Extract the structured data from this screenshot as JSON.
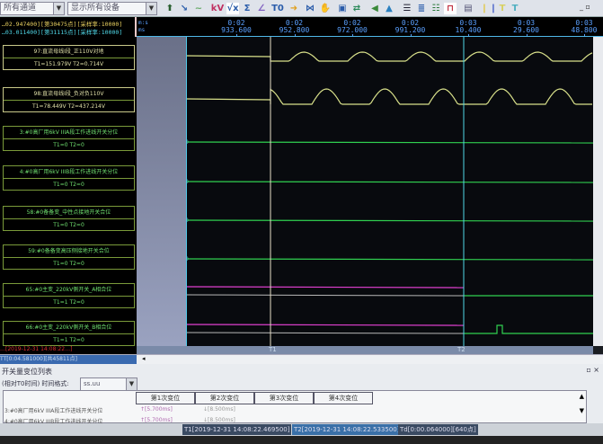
{
  "toolbar": {
    "channel_filter": "所有通道",
    "device_filter": "显示所有设备",
    "icons": [
      "arrow-tool-icon",
      "ruler-icon",
      "wave-icon",
      "kv-icon",
      "sqrt-icon",
      "sigma-icon",
      "angle-icon",
      "t0-icon",
      "forward-icon",
      "fit-icon",
      "hand-icon",
      "image-icon",
      "swap-icon",
      "back-icon",
      "up-icon",
      "list-icon",
      "align-icon",
      "tree-icon",
      "switch-icon",
      "window-icon",
      "marker-yellow-icon",
      "marker-blue-icon",
      "t1-icon",
      "t2-icon"
    ],
    "kv": "kV",
    "sqrt": "√x",
    "sigma": "Σ",
    "t0": "T0"
  },
  "header": {
    "t1_info": "…02.947400][第30475点][采样率:10000]",
    "t2_info": "…03.011400][第31115点][采样率:10000]",
    "unit1": "m:s",
    "unit2": "ms",
    "ticks": [
      {
        "m": "0:02",
        "s": "933.600"
      },
      {
        "m": "0:02",
        "s": "952.800"
      },
      {
        "m": "0:02",
        "s": "972.000"
      },
      {
        "m": "0:02",
        "s": "991.200"
      },
      {
        "m": "0:03",
        "s": "10.400"
      },
      {
        "m": "0:03",
        "s": "29.600"
      },
      {
        "m": "0:03",
        "s": "48.800"
      }
    ]
  },
  "channels": [
    {
      "name": "97:直流母线I段_正110V对地",
      "values": "T1=151.979V T2=0.714V",
      "type": "analog"
    },
    {
      "name": "98:直流母线I段_负对负110V",
      "values": "T1=78.449V T2=437.214V",
      "type": "analog"
    },
    {
      "name": "3:#0高厂用6kV IIIA段工作进线开关分位",
      "values": "T1=0 T2=0",
      "type": "digital"
    },
    {
      "name": "4:#0高厂用6kV IIIB段工作进线开关分位",
      "values": "T1=0 T2=0",
      "type": "digital"
    },
    {
      "name": "58:#0备备变_中性点接地开关合位",
      "values": "T1=0 T2=0",
      "type": "digital"
    },
    {
      "name": "59:#0备备变高压侧接地开关合位",
      "values": "T1=0 T2=0",
      "type": "digital"
    },
    {
      "name": "65:#0主变_220kV侧开关_A相合位",
      "values": "T1=1 T2=0",
      "type": "digital"
    },
    {
      "name": "66:#0主变_220kV侧开关_B相合位",
      "values": "T1=1 T2=0",
      "type": "digital"
    }
  ],
  "cursors": {
    "t1": "T1",
    "t2": "T2"
  },
  "left_status": {
    "line1": "…[2019-12-31 14:08:22…]",
    "line2": "TT[0:04.581000][共45811点]"
  },
  "panel": {
    "title": "开关量变位列表",
    "relative_label": "(相对T0时间) 时间格式:",
    "time_format": "ss.uu",
    "columns": [
      "第1次变位",
      "第2次变位",
      "第3次变位",
      "第4次变位"
    ],
    "rows": [
      {
        "name": "3:#0高厂用6kV IIIA段工作进线开关分位",
        "c1": "↑[5.700ms]",
        "c2": "↓[8.500ms]"
      },
      {
        "name": "4:#0高厂用6kV IIIB段工作进线开关分位",
        "c1": "↑[5.700ms]",
        "c2": "↓[8.500ms]"
      }
    ]
  },
  "status": {
    "t1": "T1[2019-12-31 14:08:22.469500]",
    "t2": "T2[2019-12-31 14:08:22.533500]",
    "td": "Td[0:00.064000][640点]"
  },
  "colors": {
    "analog": "#d8e08a",
    "digital_on": "#e040d0",
    "digital_off": "#30d050",
    "t1_cursor": "#e8e0c8",
    "t2_cursor": "#50d8e8"
  }
}
